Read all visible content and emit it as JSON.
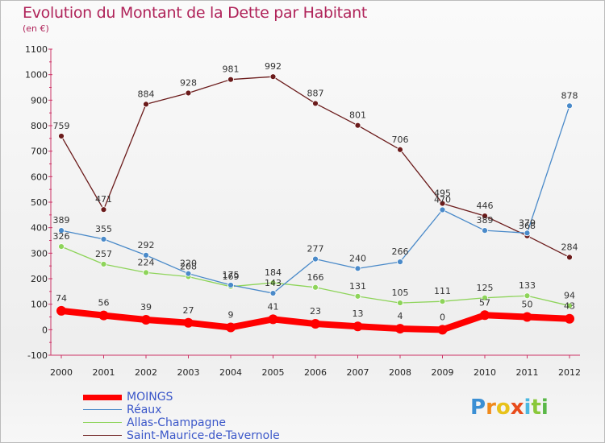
{
  "chart_data": {
    "type": "line",
    "title": "Evolution du Montant de la Dette par Habitant",
    "subtitle": "(en €)",
    "xlabel": "",
    "ylabel": "",
    "ylim": [
      -100,
      1100
    ],
    "yticks": [
      -100,
      0,
      100,
      200,
      300,
      400,
      500,
      600,
      700,
      800,
      900,
      1000,
      1100
    ],
    "categories": [
      "2000",
      "2001",
      "2002",
      "2003",
      "2004",
      "2005",
      "2006",
      "2007",
      "2008",
      "2009",
      "2010",
      "2011",
      "2012"
    ],
    "grid": false,
    "legend_position": "bottom-left",
    "series": [
      {
        "name": "MOINGS",
        "color": "#ff0000",
        "values": [
          74,
          56,
          39,
          27,
          9,
          41,
          23,
          13,
          4,
          0,
          57,
          50,
          43
        ],
        "labels": [
          "74",
          "56",
          "39",
          "27",
          "9",
          "41",
          "23",
          "13",
          "4",
          "0",
          "57",
          "50",
          "43"
        ]
      },
      {
        "name": "Réaux",
        "color": "#4a8ac9",
        "values": [
          389,
          355,
          292,
          220,
          175,
          143,
          277,
          240,
          266,
          470,
          389,
          379,
          878
        ],
        "labels": [
          "389",
          "355",
          "292",
          "220",
          "175",
          "143",
          "277",
          "240",
          "266",
          "470",
          "389",
          "379",
          "878"
        ]
      },
      {
        "name": "Allas-Champagne",
        "color": "#8ed45a",
        "values": [
          326,
          257,
          224,
          208,
          169,
          184,
          166,
          131,
          105,
          111,
          125,
          133,
          94
        ],
        "labels": [
          "326",
          "257",
          "224",
          "208",
          "169",
          "184",
          "166",
          "131",
          "105",
          "111",
          "125",
          "133",
          "94"
        ]
      },
      {
        "name": "Saint-Maurice-de-Tavernole",
        "color": "#6b1b1b",
        "values": [
          759,
          471,
          884,
          928,
          981,
          992,
          887,
          801,
          706,
          495,
          446,
          368,
          284
        ],
        "labels": [
          "759",
          "471",
          "884",
          "928",
          "981",
          "992",
          "887",
          "801",
          "706",
          "495",
          "446",
          "368",
          "284"
        ]
      }
    ]
  },
  "brand": {
    "letters": [
      "P",
      "r",
      "o",
      "x",
      "i",
      "t",
      "i"
    ],
    "colors": [
      "#3b8fd4",
      "#f08a1c",
      "#e8c21a",
      "#e84c1c",
      "#4bb8e0",
      "#8ac83a",
      "#5ab848"
    ]
  }
}
